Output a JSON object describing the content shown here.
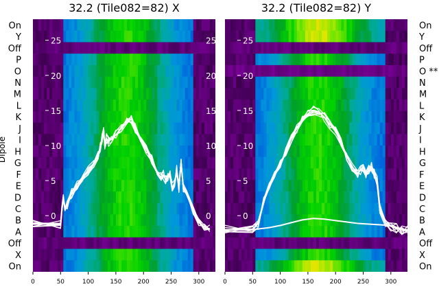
{
  "chart_data": [
    {
      "type": "heatmap",
      "title": "32.2 (Tile082=82) X",
      "ylabel": "Dipole",
      "xlim": [
        0,
        330
      ],
      "xticks": [
        0,
        50,
        100,
        150,
        200,
        250,
        300
      ],
      "ylim": [
        -8,
        28
      ],
      "yticks": [
        0,
        5,
        10,
        15,
        20,
        25
      ],
      "row_labels": [
        "On",
        "Y",
        "Off",
        "P",
        "O",
        "N",
        "M",
        "L",
        "K",
        "J",
        "I",
        "H",
        "G",
        "F",
        "E",
        "D",
        "C",
        "B",
        "A",
        "Off",
        "X",
        "On"
      ],
      "colormap": "nipy_spectral",
      "overlay": {
        "color": "#ffffff",
        "x": [
          0,
          50,
          52,
          55,
          58,
          62,
          70,
          80,
          90,
          100,
          110,
          118,
          122,
          125,
          128,
          130,
          133,
          137,
          142,
          150,
          160,
          170,
          178,
          185,
          195,
          205,
          215,
          225,
          232,
          236,
          240,
          244,
          248,
          252,
          256,
          260,
          264,
          268,
          272,
          278,
          290,
          300,
          310,
          320
        ],
        "y": [
          -1.2,
          -1.2,
          0.5,
          2.5,
          0.8,
          1.5,
          3.2,
          4.5,
          5.5,
          6.5,
          7.5,
          8.5,
          9.8,
          11,
          12,
          10,
          11,
          10.5,
          11,
          11.5,
          12.5,
          13.5,
          13.8,
          12.5,
          11,
          9.5,
          8,
          6,
          5.5,
          5.8,
          5.2,
          5.5,
          5.8,
          4,
          4.5,
          6.5,
          4,
          7.5,
          4,
          3,
          0.8,
          -1,
          -1.6,
          -1.9
        ]
      }
    },
    {
      "type": "heatmap",
      "title": "32.2 (Tile082=82) Y",
      "xlim": [
        0,
        330
      ],
      "xticks": [
        0,
        50,
        100,
        150,
        200,
        250,
        300
      ],
      "ylim": [
        -8,
        28
      ],
      "yticks": [
        0,
        5,
        10,
        15,
        20,
        25
      ],
      "row_labels": [
        "On",
        "Y",
        "Off",
        "P",
        "O **",
        "N",
        "M",
        "L",
        "K",
        "J",
        "I",
        "H",
        "G",
        "F",
        "E",
        "D",
        "C",
        "B",
        "A",
        "Off",
        "X",
        "On"
      ],
      "colormap": "nipy_spectral",
      "overlay": {
        "color": "#ffffff",
        "x": [
          0,
          50,
          60,
          70,
          80,
          90,
          100,
          110,
          120,
          130,
          140,
          150,
          160,
          170,
          180,
          190,
          200,
          210,
          220,
          230,
          240,
          245,
          250,
          255,
          260,
          265,
          270,
          275,
          280,
          290,
          300,
          310,
          320,
          330
        ],
        "y": [
          -2,
          -1.9,
          -1,
          2,
          4,
          6,
          7.5,
          9,
          11,
          12.5,
          13.8,
          14.5,
          15,
          14.8,
          14,
          13,
          12,
          10.5,
          8.5,
          7,
          6,
          6.5,
          7,
          6,
          6.5,
          7,
          6,
          5,
          1,
          -1,
          -1.5,
          -1.8,
          -2,
          -2.1
        ]
      },
      "overlay_2": {
        "color": "#ffffff",
        "x": [
          0,
          50,
          60,
          70,
          80,
          100,
          120,
          140,
          160,
          180,
          200,
          220,
          240,
          260,
          280,
          300,
          320,
          330
        ],
        "y": [
          -2,
          -2,
          -1.9,
          -1.8,
          -1.7,
          -1.4,
          -1,
          -0.6,
          -0.4,
          -0.5,
          -0.7,
          -0.9,
          -1.1,
          -1.2,
          -1.3,
          -1.4,
          -1.9,
          -2
        ]
      }
    }
  ]
}
